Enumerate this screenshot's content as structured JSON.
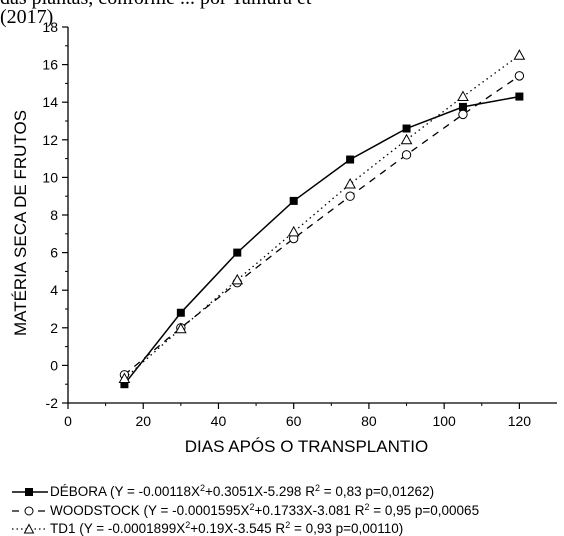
{
  "page": {
    "top_text_line1": "das plantas, conforme ... por Tamura et",
    "top_text_line2": "(2017)"
  },
  "chart_data": {
    "type": "line",
    "xlabel": "DIAS APÓS O TRANSPLANTIO",
    "ylabel": "MATÉRIA SECA DE FRUTOS",
    "xlim": [
      0,
      130
    ],
    "ylim": [
      -2,
      18
    ],
    "xticks": [
      0,
      20,
      40,
      60,
      80,
      100,
      120
    ],
    "yticks": [
      -2,
      0,
      2,
      4,
      6,
      8,
      10,
      12,
      14,
      16,
      18
    ],
    "series": [
      {
        "name": "DÉBORA",
        "marker": "filled-square",
        "line": "solid",
        "x": [
          15,
          30,
          45,
          60,
          75,
          90,
          105,
          120
        ],
        "y": [
          -1.0,
          2.8,
          6.0,
          8.75,
          10.95,
          12.6,
          13.75,
          14.3
        ],
        "legend_pre": "DÉBORA  (Y = -0.00118X",
        "legend_post": "+0.3051X-5.298   R",
        "legend_end": " = 0,83  p=0,01262)"
      },
      {
        "name": "WOODSTOCK",
        "marker": "open-circle",
        "line": "dashed",
        "x": [
          15,
          30,
          45,
          60,
          75,
          90,
          105,
          120
        ],
        "y": [
          -0.5,
          2.0,
          4.4,
          6.75,
          9.0,
          11.2,
          13.35,
          15.4
        ],
        "legend_pre": "WOODSTOCK  (Y = -0.0001595X",
        "legend_post": "+0.1733X-3.081 R",
        "legend_end": " = 0,95  p=0,00065"
      },
      {
        "name": "TD1",
        "marker": "open-triangle",
        "line": "dotted",
        "x": [
          15,
          30,
          45,
          60,
          75,
          90,
          105,
          120
        ],
        "y": [
          -0.7,
          1.95,
          4.55,
          7.1,
          9.65,
          12.0,
          14.3,
          16.5
        ],
        "legend_pre": "TD1  (Y = -0.0001899X",
        "legend_post": "+0.19X-3.545   R",
        "legend_end": " = 0,93  p=0,00110)"
      }
    ]
  }
}
